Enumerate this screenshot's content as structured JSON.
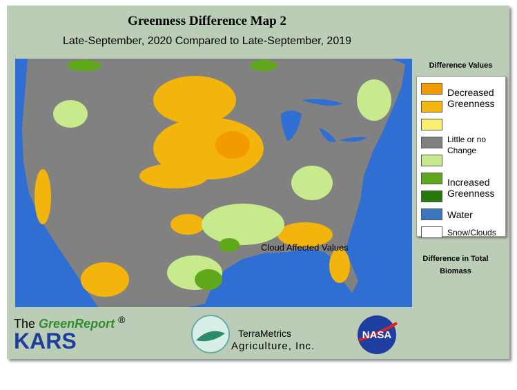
{
  "header": {
    "title": "Greenness Difference Map 2",
    "subtitle": "Late-September, 2020 Compared to Late-September, 2019"
  },
  "legend": {
    "title": "Difference Values",
    "entries": [
      {
        "colors": [
          "#f29a00",
          "#f6b70d"
        ],
        "label": "Decreased Greenness"
      },
      {
        "colors": [
          "#f8ef70"
        ]
      },
      {
        "colors": [
          "#808080"
        ],
        "label": "Little or no Change"
      },
      {
        "colors": [
          "#c6ea8c"
        ]
      },
      {
        "colors": [
          "#5fa81a",
          "#237a0b"
        ],
        "label": "Increased Greenness"
      },
      {
        "colors": [
          "#3a76bd"
        ],
        "label": "Water"
      },
      {
        "colors": [
          "#ffffff"
        ],
        "label": "Snow/Clouds"
      }
    ],
    "footer": "Difference in Total Biomass"
  },
  "map": {
    "annotation": "Cloud Affected Values"
  },
  "logos": {
    "greenreport_prefix": "The",
    "greenreport": "GreenReport",
    "registered": "®",
    "kars": "KARS",
    "terrametrics": "TerraMetrics",
    "terrametrics_sub": "Agriculture, Inc.",
    "nasa": "NASA"
  }
}
